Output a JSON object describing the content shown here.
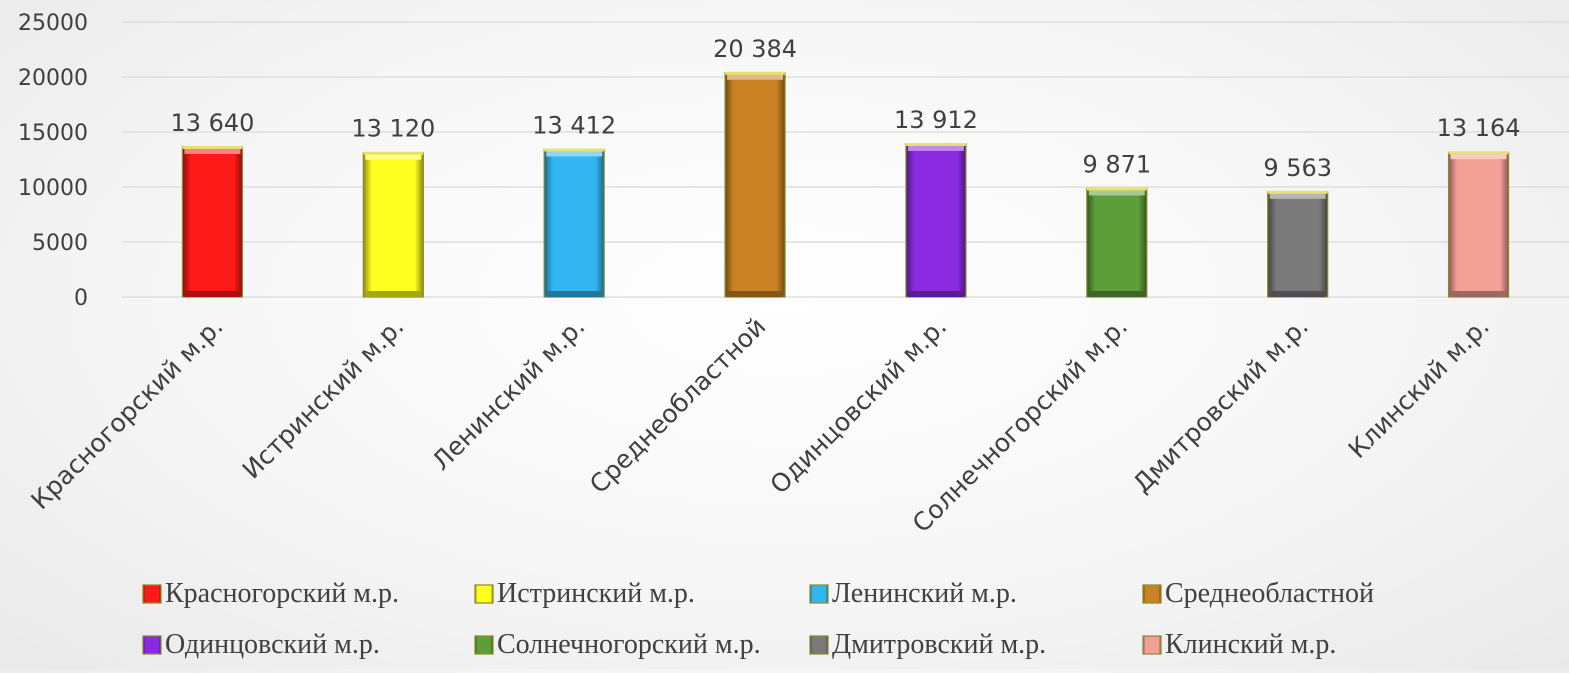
{
  "chart_data": {
    "type": "bar",
    "categories": [
      "Красногорский м.р.",
      "Истринский м.р.",
      "Ленинский м.р.",
      "Среднеобластной",
      "Одинцовский м.р.",
      "Солнечногорский м.р.",
      "Дмитровский м.р.",
      "Клинский м.р."
    ],
    "values": [
      13640,
      13120,
      13412,
      20384,
      13912,
      9871,
      9563,
      13164
    ],
    "data_labels": [
      "13 640",
      "13 120",
      "13 412",
      "20 384",
      "13 912",
      "9 871",
      "9 563",
      "13 164"
    ],
    "colors": [
      "#ff1a1a",
      "#ffff22",
      "#33b5f2",
      "#c98224",
      "#8a2be2",
      "#5e9e3a",
      "#7a7a7a",
      "#f3a096"
    ],
    "ylim": [
      0,
      25000
    ],
    "yticks": [
      0,
      5000,
      10000,
      15000,
      20000,
      25000
    ],
    "ytick_labels": [
      "0",
      "5000",
      "10000",
      "15000",
      "20000",
      "25000"
    ],
    "grid": true,
    "legend": {
      "position": "bottom",
      "entries": [
        "Красногорский м.р.",
        "Истринский м.р.",
        "Ленинский м.р.",
        "Среднеобластной",
        "Одинцовский м.р.",
        "Солнечногорский м.р.",
        "Дмитровский м.р.",
        "Клинский м.р."
      ]
    },
    "title": "",
    "xlabel": "",
    "ylabel": ""
  }
}
